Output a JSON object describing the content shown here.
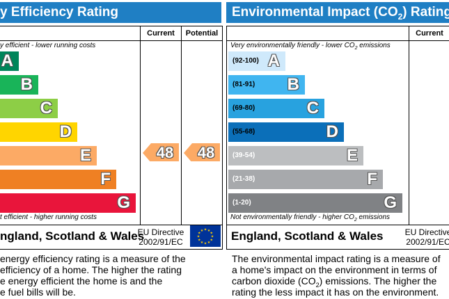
{
  "efficiency": {
    "title": "y Efficiency Rating",
    "current_label": "Current",
    "potential_label": "Potential",
    "top_note": "y efficient - lower running costs",
    "bottom_note": "t efficient - higher running costs",
    "bands": [
      {
        "letter": "A",
        "color": "#00855a"
      },
      {
        "letter": "B",
        "color": "#19b459"
      },
      {
        "letter": "C",
        "color": "#8dce46"
      },
      {
        "letter": "D",
        "color": "#ffd500"
      },
      {
        "letter": "E",
        "color": "#fcaa65"
      },
      {
        "letter": "F",
        "color": "#ef8023"
      },
      {
        "letter": "G",
        "color": "#e9153b"
      }
    ],
    "current_value": "48",
    "potential_value": "48",
    "rating_color": "#fcaa65",
    "region": "ngland, Scotland & Wales",
    "directive_line1": "EU Directive",
    "directive_line2": "2002/91/EC",
    "description": [
      "energy efficiency rating is a measure of the",
      "efficiency of a home. The higher the rating",
      "e energy efficient the home is and the",
      "e fuel bills will be."
    ]
  },
  "environmental": {
    "title_prefix": "Environmental Impact (CO",
    "title_sub": "2",
    "title_suffix": ") Rating",
    "current_label": "Current",
    "top_note_prefix": "Very environmentally friendly - lower CO",
    "top_note_sub": "2",
    "top_note_suffix": " emissions",
    "bottom_note_prefix": "Not environmentally friendly - higher CO",
    "bottom_note_sub": "2",
    "bottom_note_suffix": " emissions",
    "bands": [
      {
        "range": "(92-100)",
        "letter": "A",
        "color": "#cfe9fb"
      },
      {
        "range": "(81-91)",
        "letter": "B",
        "color": "#40b5f0"
      },
      {
        "range": "(69-80)",
        "letter": "C",
        "color": "#28a2df"
      },
      {
        "range": "(55-68)",
        "letter": "D",
        "color": "#0b6fb9"
      },
      {
        "range": "(39-54)",
        "letter": "E",
        "color": "#bcbec0"
      },
      {
        "range": "(21-38)",
        "letter": "F",
        "color": "#a7a9ac"
      },
      {
        "range": "(1-20)",
        "letter": "G",
        "color": "#808285"
      }
    ],
    "region": "England, Scotland & Wales",
    "directive_line1": "EU Directive",
    "directive_line2": "2002/91/EC",
    "description": [
      {
        "text": "The environmental impact rating is a measure of"
      },
      {
        "text": "a home's impact on the environment in terms of"
      },
      {
        "prefix": "carbon dioxide (CO",
        "sub": "2",
        "suffix": ") emissions. The higher the"
      },
      {
        "text": "rating the less impact it has on the environment."
      }
    ]
  },
  "eu_flag": {
    "background": "#003399",
    "stars": "#ffcc00"
  }
}
